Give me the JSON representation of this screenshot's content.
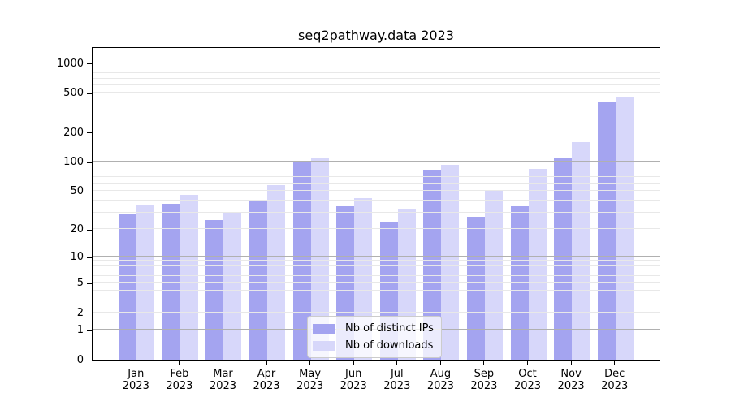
{
  "title": "seq2pathway.data 2023",
  "chart_data": {
    "type": "bar",
    "title": "seq2pathway.data 2023",
    "categories": [
      "Jan 2023",
      "Feb 2023",
      "Mar 2023",
      "Apr 2023",
      "May 2023",
      "Jun 2023",
      "Jul 2023",
      "Aug 2023",
      "Sep 2023",
      "Oct 2023",
      "Nov 2023",
      "Dec 2023"
    ],
    "series": [
      {
        "name": "Nb of distinct IPs",
        "color": "#a4a4f0",
        "values": [
          29,
          37,
          25,
          41,
          99,
          35,
          24,
          83,
          27,
          35,
          110,
          410
        ]
      },
      {
        "name": "Nb of downloads",
        "color": "#d7d7fa",
        "values": [
          36,
          46,
          30,
          57,
          110,
          42,
          32,
          92,
          50,
          84,
          158,
          452
        ]
      }
    ],
    "xlabel": "",
    "ylabel": "",
    "y_scale": "log10(value+1)",
    "ylim": [
      0,
      1500
    ],
    "y_ticks": [
      0,
      1,
      2,
      5,
      10,
      20,
      50,
      100,
      200,
      500,
      1000
    ],
    "grid": {
      "on": true,
      "major": [
        1,
        10,
        100,
        1000
      ],
      "minor": [
        2,
        3,
        4,
        5,
        6,
        7,
        8,
        9,
        20,
        30,
        40,
        50,
        60,
        70,
        80,
        90,
        200,
        300,
        400,
        500,
        600,
        700,
        800,
        900
      ]
    },
    "legend_position": "bottom-center"
  },
  "colors": {
    "axis": "#000000",
    "grid_major": "#b0b0b0",
    "grid_minor": "#e8e8e8",
    "legend_border": "#cccccc"
  }
}
